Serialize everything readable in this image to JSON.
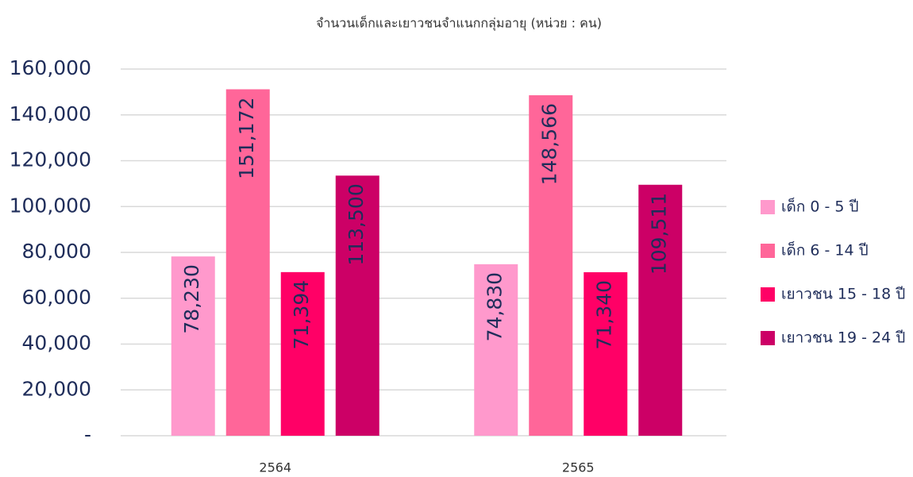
{
  "chart_data": {
    "type": "bar",
    "title": "จำนวนเด็กและเยาวชนจำแนกกลุ่มอายุ (หน่วย : คน)",
    "categories": [
      "2564",
      "2565"
    ],
    "series": [
      {
        "name": "เด็ก 0 - 5 ปี",
        "color": "#ff99cc",
        "values": [
          78230,
          74830
        ],
        "value_labels": [
          "78,230",
          "74,830"
        ]
      },
      {
        "name": "เด็ก 6 - 14 ปี",
        "color": "#ff6699",
        "values": [
          151172,
          148566
        ],
        "value_labels": [
          "151,172",
          "148,566"
        ]
      },
      {
        "name": "เยาวชน 15 - 18 ปี",
        "color": "#ff0066",
        "values": [
          71394,
          71340
        ],
        "value_labels": [
          "71,394",
          "71,340"
        ]
      },
      {
        "name": "เยาวชน 19 - 24 ปี",
        "color": "#cc0066",
        "values": [
          113500,
          109511
        ],
        "value_labels": [
          "113,500",
          "109,511"
        ]
      }
    ],
    "ylim": [
      0,
      160000
    ],
    "yticks": [
      {
        "value": 0,
        "label": "-"
      },
      {
        "value": 20000,
        "label": "20,000"
      },
      {
        "value": 40000,
        "label": "40,000"
      },
      {
        "value": 60000,
        "label": "60,000"
      },
      {
        "value": 80000,
        "label": "80,000"
      },
      {
        "value": 100000,
        "label": "100,000"
      },
      {
        "value": 120000,
        "label": "120,000"
      },
      {
        "value": 140000,
        "label": "140,000"
      },
      {
        "value": 160000,
        "label": "160,000"
      }
    ],
    "grid": true,
    "legend": "right"
  }
}
